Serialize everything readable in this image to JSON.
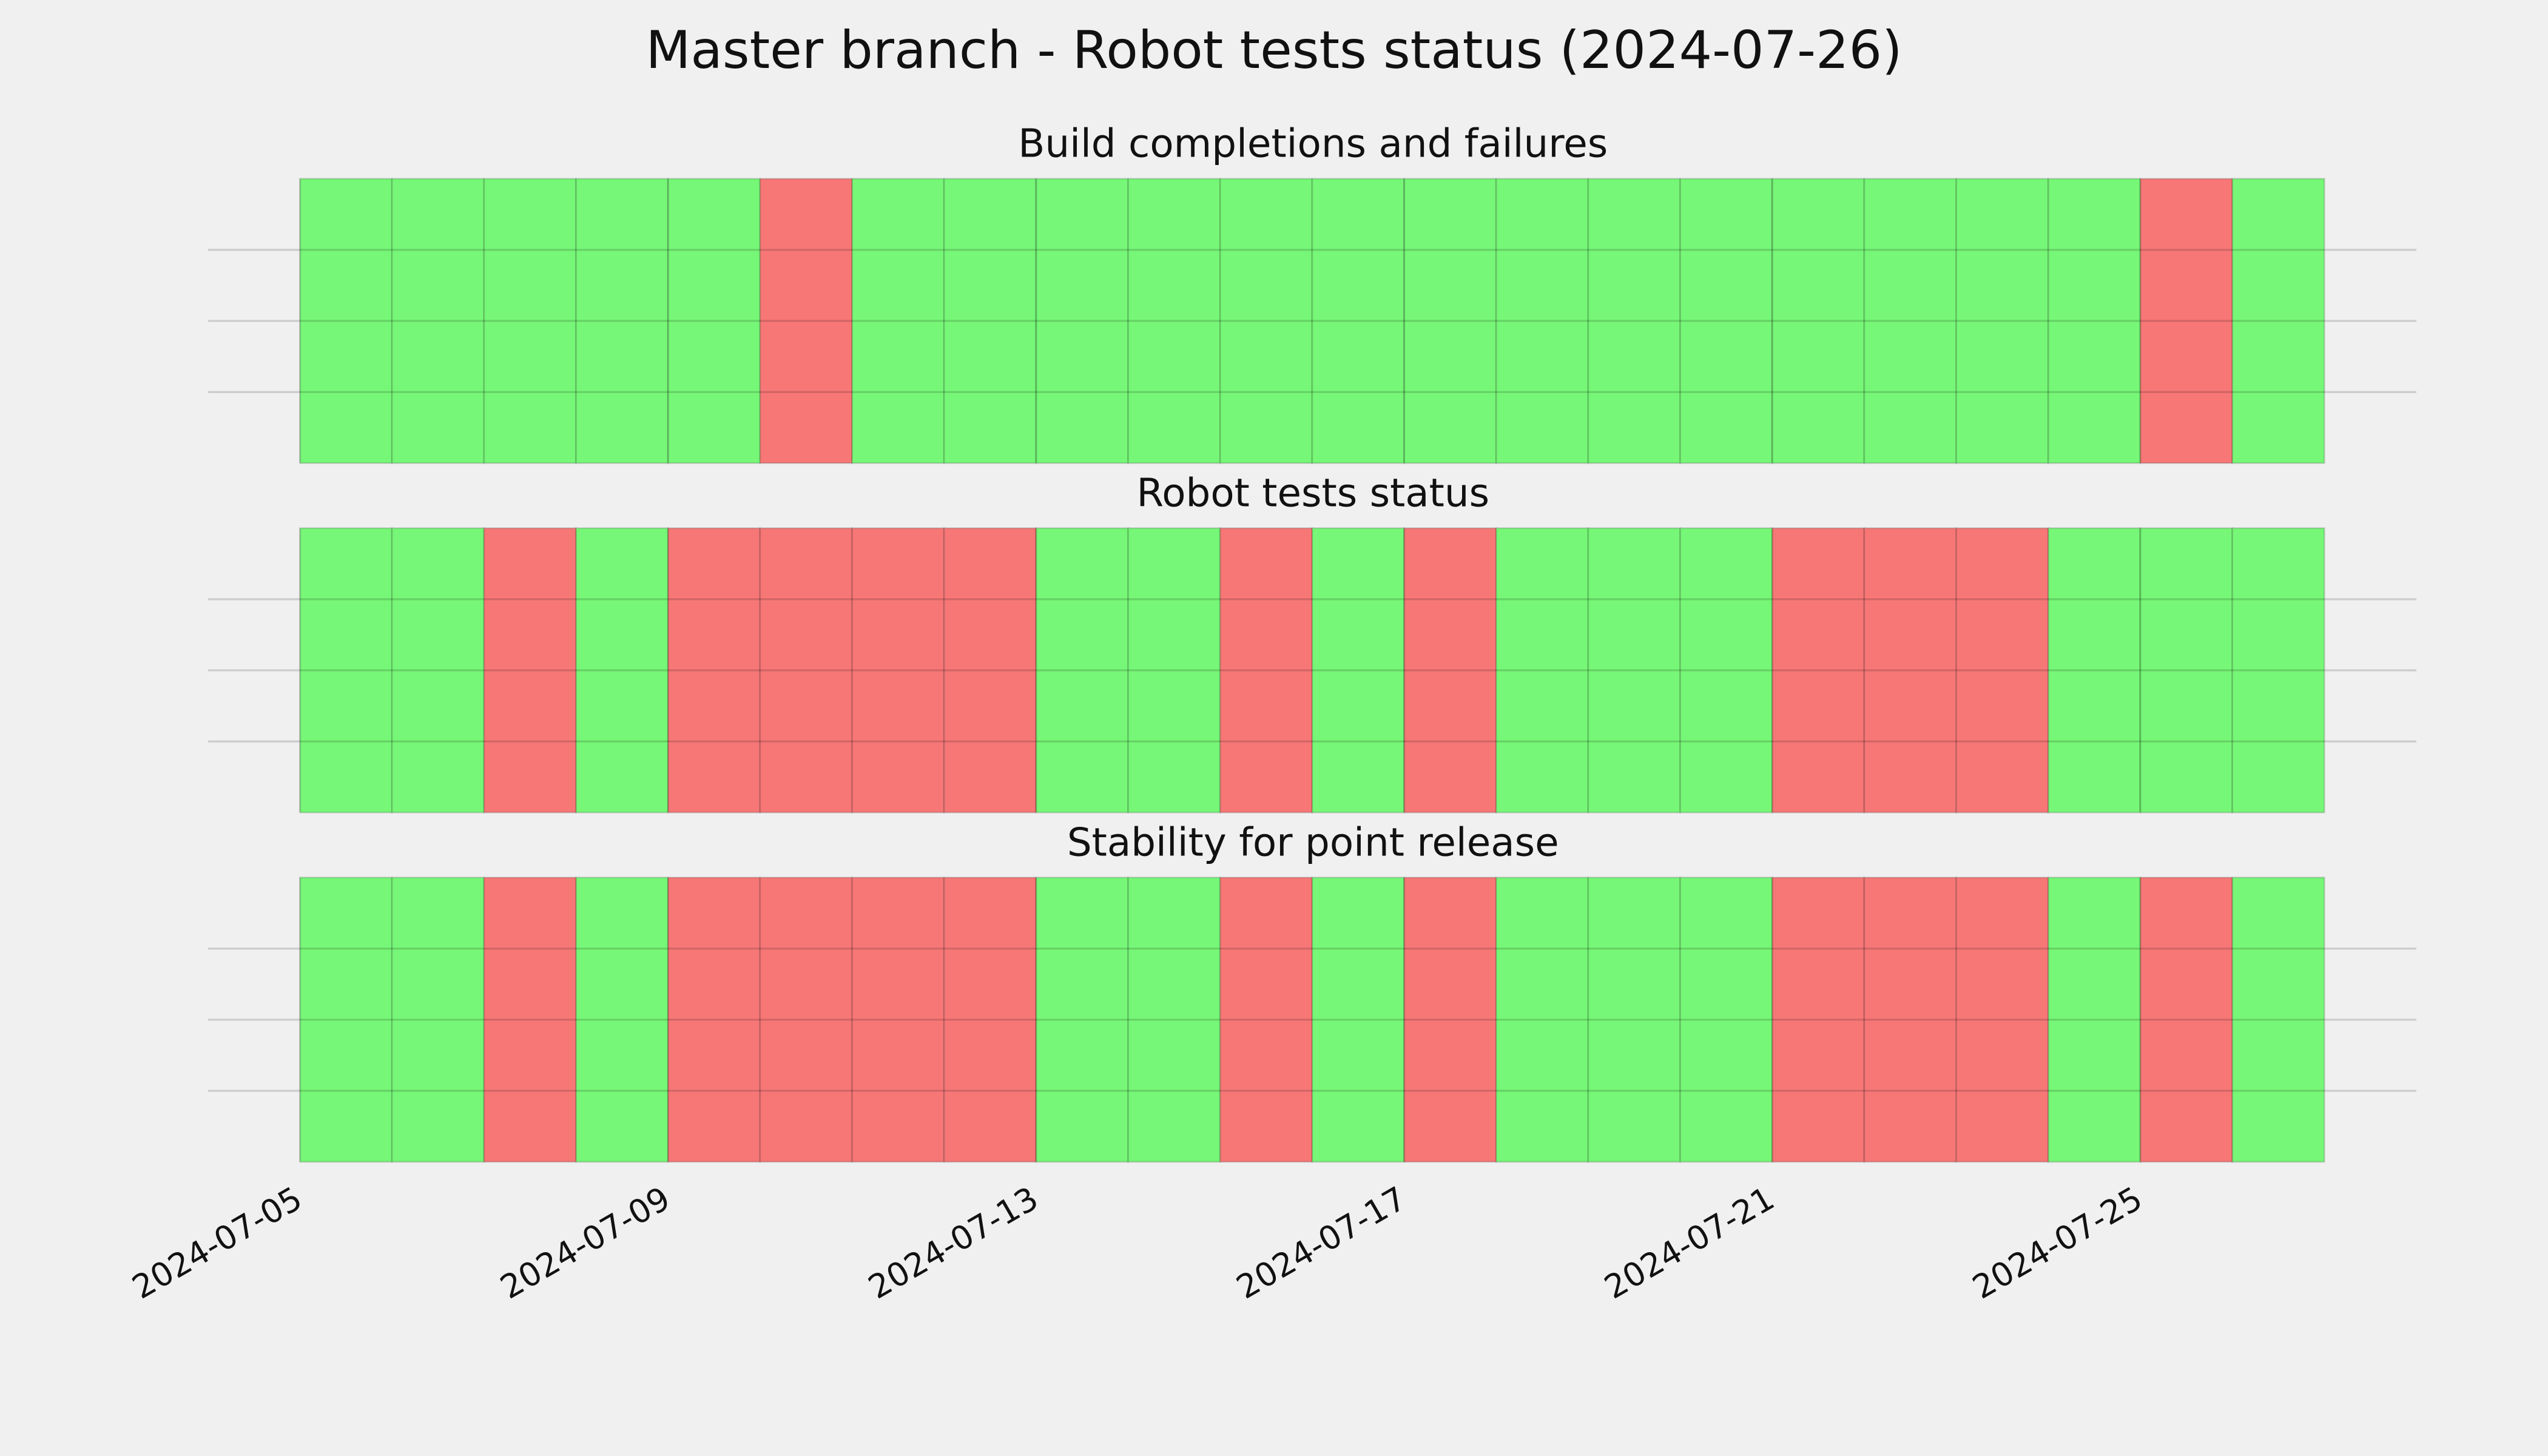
{
  "chart_data": {
    "type": "status",
    "title": "Master branch - Robot tests status (2024-07-26)",
    "x": [
      "2024-07-05",
      "2024-07-06",
      "2024-07-07",
      "2024-07-08",
      "2024-07-09",
      "2024-07-10",
      "2024-07-11",
      "2024-07-12",
      "2024-07-13",
      "2024-07-14",
      "2024-07-15",
      "2024-07-16",
      "2024-07-17",
      "2024-07-18",
      "2024-07-19",
      "2024-07-20",
      "2024-07-21",
      "2024-07-22",
      "2024-07-23",
      "2024-07-24",
      "2024-07-25",
      "2024-07-26"
    ],
    "colors": [
      "#f77777",
      "#77f777"
    ],
    "xlim": [
      "2024-07-04",
      "2024-07-28"
    ],
    "xticks": [
      "2024-07-05",
      "2024-07-09",
      "2024-07-13",
      "2024-07-17",
      "2024-07-21",
      "2024-07-25"
    ],
    "ylim": [
      0,
      1
    ],
    "yticks": [
      0.25,
      0.5,
      0.75
    ],
    "grid": true,
    "panels": [
      {
        "title": "Build completions and failures",
        "values": [
          1,
          1,
          1,
          1,
          1,
          0,
          1,
          1,
          1,
          1,
          1,
          1,
          1,
          1,
          1,
          1,
          1,
          1,
          1,
          1,
          0,
          1
        ]
      },
      {
        "title": "Robot tests status",
        "values": [
          1,
          1,
          0,
          1,
          0,
          0,
          0,
          0,
          1,
          1,
          0,
          1,
          0,
          1,
          1,
          1,
          0,
          0,
          0,
          1,
          1,
          1
        ]
      },
      {
        "title": "Stability for point release",
        "values": [
          1,
          1,
          0,
          1,
          0,
          0,
          0,
          0,
          1,
          1,
          0,
          1,
          0,
          1,
          1,
          1,
          0,
          0,
          0,
          1,
          0,
          1
        ]
      }
    ]
  }
}
